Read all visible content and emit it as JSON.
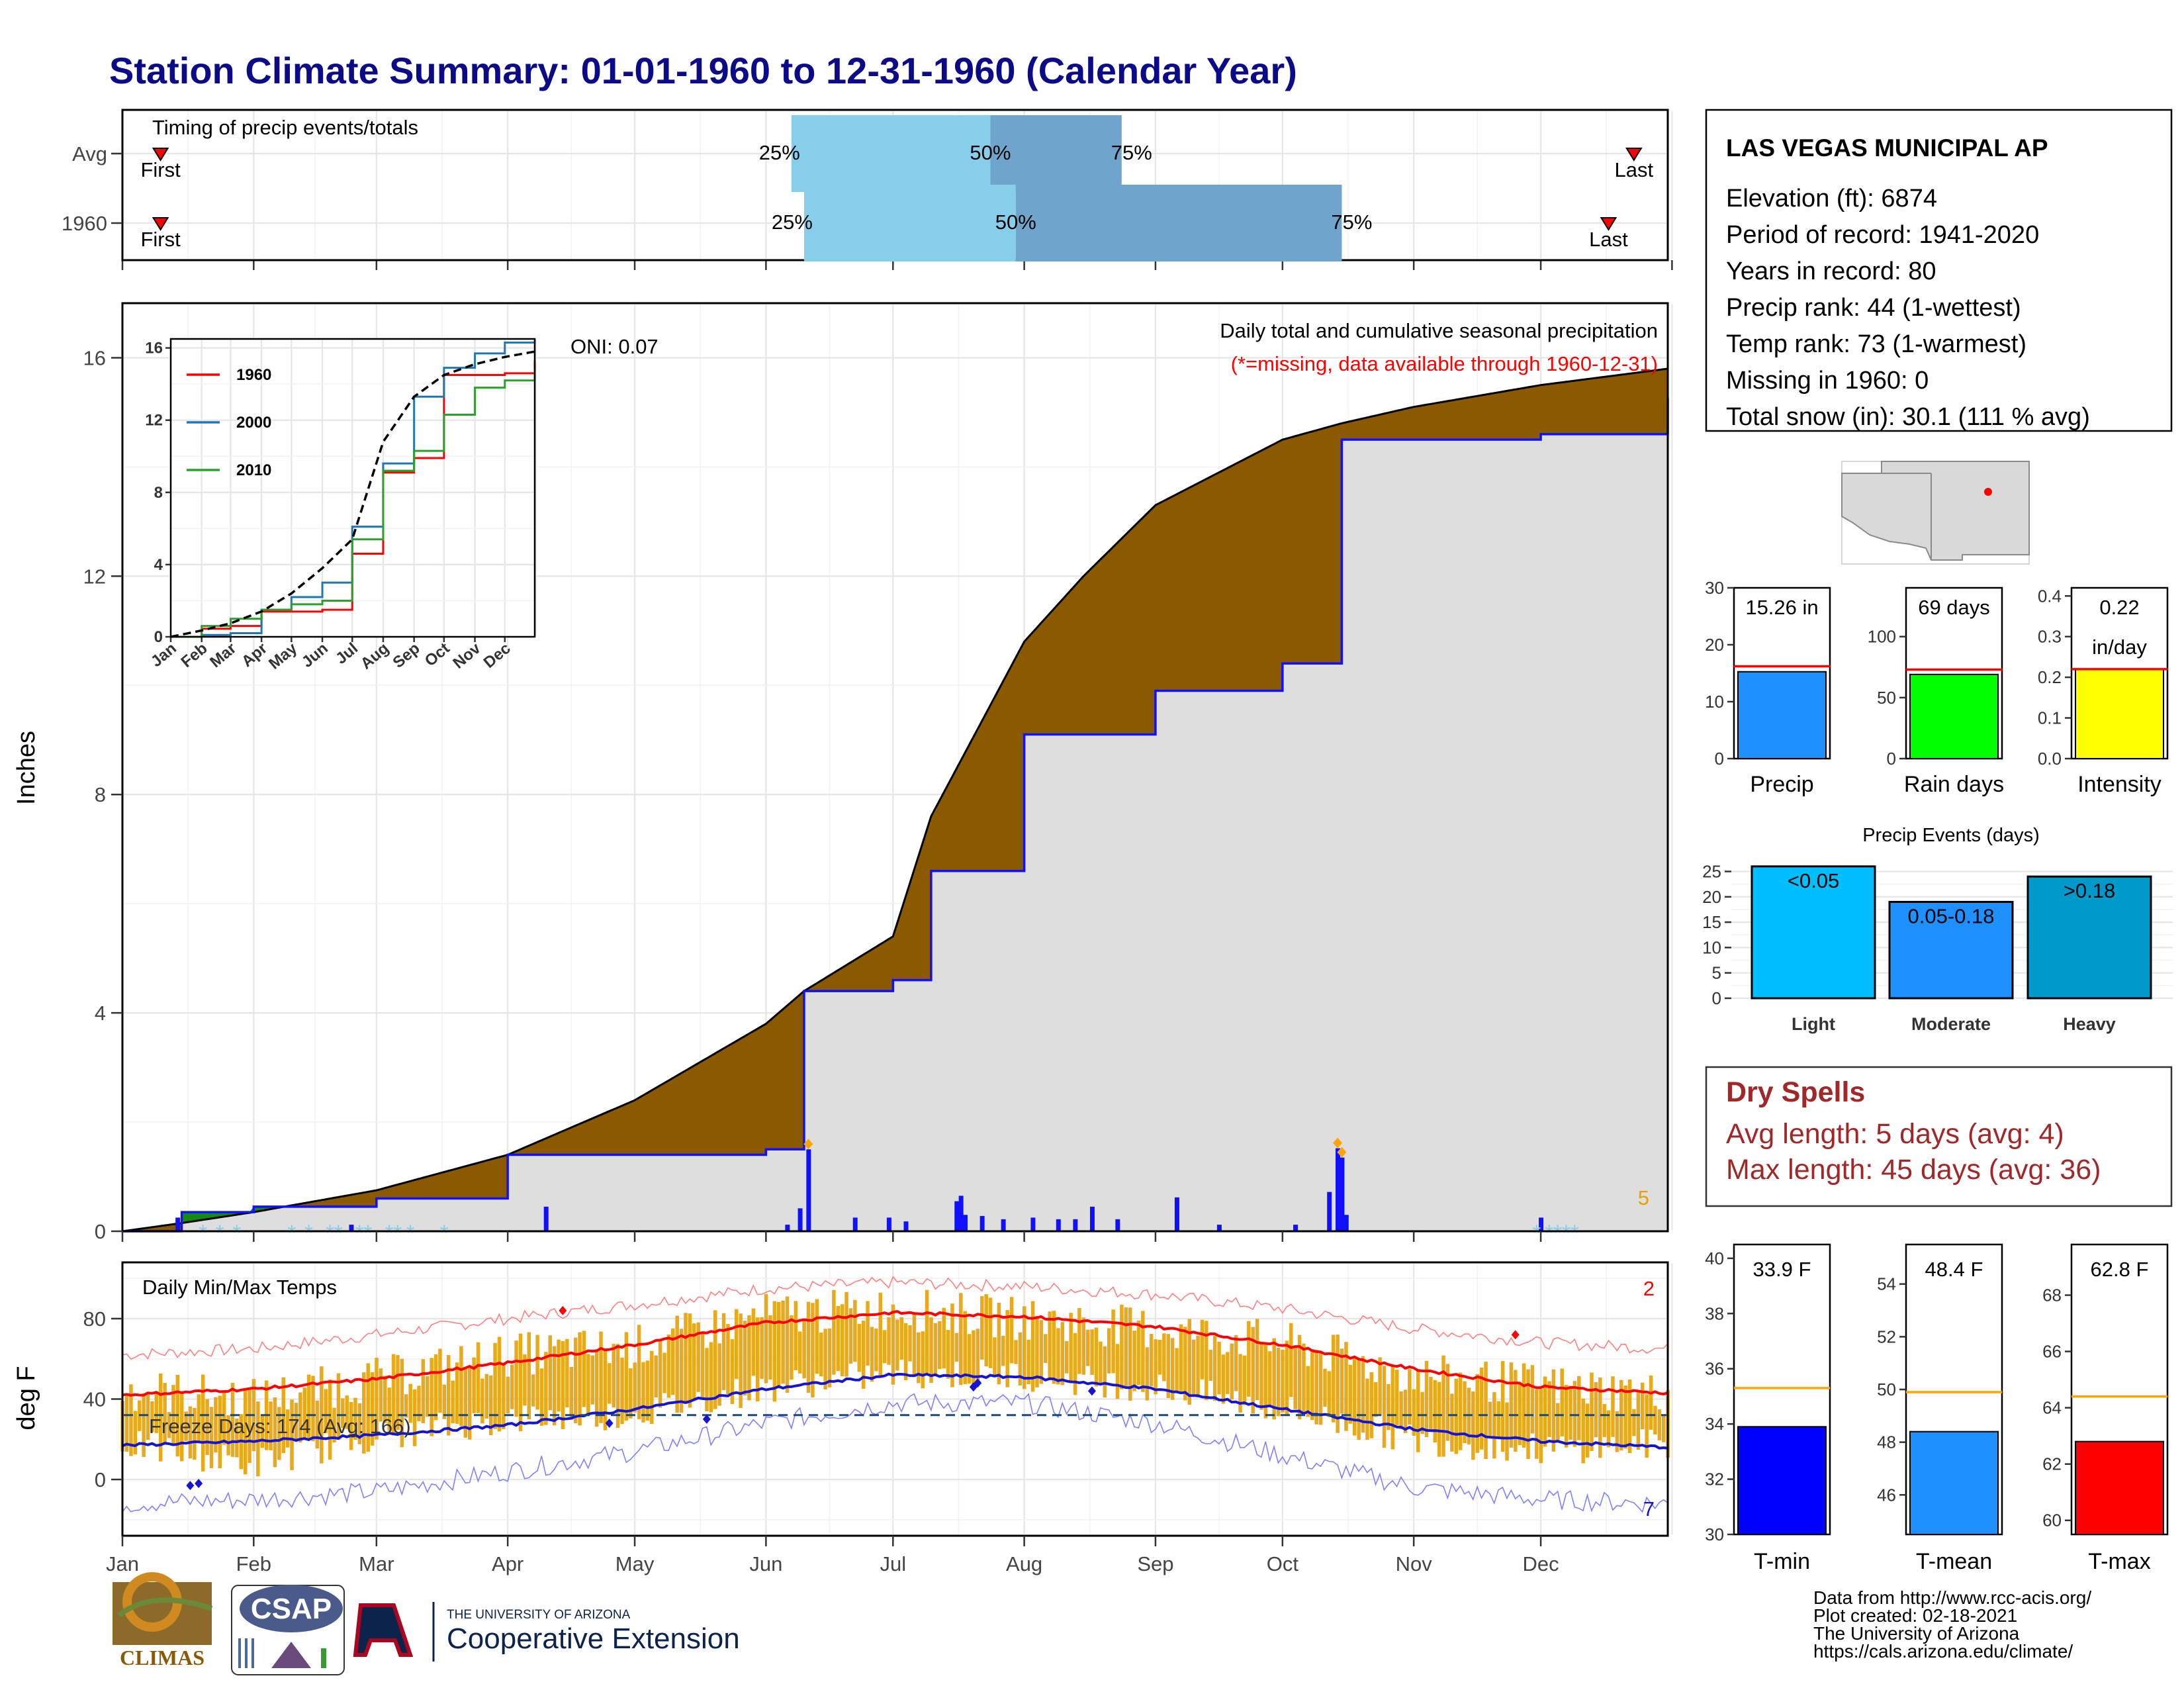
{
  "title": "Station Climate Summary: 01-01-1960 to 12-31-1960 (Calendar Year)",
  "colors": {
    "title": "#0b0b8a",
    "cum_precip": "#8b5a00",
    "deficit": "#138b13",
    "daily_precip": "#1010ff",
    "max_temp": "#ff0000",
    "min_temp": "#1515d0",
    "range_bars": "#e8aa1a",
    "timing_light": "#87ceeb",
    "timing_dark": "#6fa5cc",
    "dry_spells": "#a02828"
  },
  "timing_panel": {
    "title": "Timing of precip events/totals",
    "rows": [
      "Avg",
      "1960"
    ],
    "first_label": "First",
    "last_label": "Last",
    "q25": "25%",
    "q50": "50%",
    "q75": "75%",
    "avg": {
      "first": "01-10",
      "q25": "06-07",
      "q50": "07-24",
      "q75": "08-24",
      "last": "12-23"
    },
    "y1960": {
      "first": "01-10",
      "q25": "06-10",
      "q50": "07-30",
      "q75": "10-15",
      "last": "12-17"
    }
  },
  "precip_panel": {
    "ylabel": "Inches",
    "header": "Daily total and cumulative seasonal precipitation",
    "missing_note": "(*=missing, data available through 1960-12-31)",
    "oni": "ONI: 0.07",
    "corner_count": "5",
    "month_labels": [
      "Jan",
      "Feb",
      "Mar",
      "Apr",
      "May",
      "Jun",
      "Jul",
      "Aug",
      "Sep",
      "Oct",
      "Nov",
      "Dec"
    ],
    "y_ticks": [
      "0",
      "4",
      "8",
      "12",
      "16"
    ]
  },
  "inset": {
    "legend": [
      "1960",
      "2000",
      "2010"
    ],
    "legend_colors": [
      "#ff0000",
      "#1f77b4",
      "#2ca02c"
    ],
    "y_ticks": [
      "0",
      "4",
      "8",
      "12",
      "16"
    ],
    "x_ticks": [
      "Jan",
      "Feb",
      "Mar",
      "Apr",
      "May",
      "Jun",
      "Jul",
      "Aug",
      "Sep",
      "Oct",
      "Nov",
      "Dec"
    ]
  },
  "temp_panel": {
    "ylabel": "deg F",
    "title": "Daily Min/Max Temps",
    "freeze": "Freeze Days: 174 (Avg: 166)",
    "top_count": "2",
    "bottom_count": "7",
    "y_ticks": [
      "0",
      "40",
      "80"
    ]
  },
  "station": {
    "name": "LAS VEGAS MUNICIPAL AP",
    "lines": [
      "Elevation (ft): 6874",
      "Period of record: 1941-2020",
      "Years in record: 80",
      "Precip rank: 44 (1-wettest)",
      "Temp rank: 73 (1-warmest)",
      "Missing in 1960: 0",
      "Total snow (in): 30.1 (111 % avg)"
    ]
  },
  "summary_bars": {
    "precip": {
      "label": "Precip",
      "value_text": "15.26 in",
      "value": 15.26,
      "avg": 16.2,
      "ymax": 30,
      "ticks": [
        "0",
        "10",
        "20",
        "30"
      ]
    },
    "rain_days": {
      "label": "Rain days",
      "value_text": "69 days",
      "value": 69,
      "avg": 73,
      "ymax": 140,
      "ticks": [
        "0",
        "50",
        "100"
      ]
    },
    "intensity": {
      "label": "Intensity",
      "value_text_1": "0.22",
      "value_text_2": "in/day",
      "value": 0.22,
      "avg": 0.22,
      "ymax": 0.42,
      "ticks": [
        "0.0",
        "0.1",
        "0.2",
        "0.3",
        "0.4"
      ]
    }
  },
  "precip_events": {
    "title": "Precip Events (days)",
    "categories": [
      "Light",
      "Moderate",
      "Heavy"
    ],
    "bar_labels": [
      "<0.05",
      "0.05-0.18",
      ">0.18"
    ],
    "values": [
      26,
      19,
      24
    ],
    "ticks": [
      "0",
      "5",
      "10",
      "15",
      "20",
      "25"
    ]
  },
  "dry_spells": {
    "title": "Dry Spells",
    "avg": "Avg length: 5 days (avg: 4)",
    "max": "Max length: 45 days (avg: 36)"
  },
  "temp_summary": {
    "tmin": {
      "label": "T-min",
      "value_text": "33.9 F",
      "value": 33.9,
      "avg": 35.3,
      "ymin": 30,
      "ymax": 40.5,
      "ticks": [
        "30",
        "32",
        "34",
        "36",
        "38",
        "40"
      ]
    },
    "tmean": {
      "label": "T-mean",
      "value_text": "48.4 F",
      "value": 48.4,
      "avg": 49.9,
      "ymin": 44.5,
      "ymax": 55.5,
      "ticks": [
        "46",
        "48",
        "50",
        "52",
        "54"
      ]
    },
    "tmax": {
      "label": "T-max",
      "value_text": "62.8 F",
      "value": 62.8,
      "avg": 64.4,
      "ymin": 59.5,
      "ymax": 69.8,
      "ticks": [
        "60",
        "62",
        "64",
        "66",
        "68"
      ]
    }
  },
  "footer": {
    "lines": [
      "Data from http://www.rcc-acis.org/",
      "Plot created: 02-18-2021",
      "The University of Arizona",
      "https://cals.arizona.edu/climate/"
    ],
    "logo_climas": "CLIMAS",
    "logo_csap": "CSAP",
    "ua_line1": "THE UNIVERSITY OF ARIZONA",
    "ua_line2": "Cooperative Extension"
  },
  "chart_data": [
    {
      "type": "area",
      "name": "cumulative precipitation",
      "xlabel": "",
      "ylabel": "Inches",
      "ylim": [
        0,
        17
      ],
      "x": [
        "01-01",
        "01-15",
        "02-01",
        "03-01",
        "04-01",
        "05-01",
        "06-01",
        "06-10",
        "07-01",
        "07-10",
        "08-01",
        "08-15",
        "09-01",
        "10-01",
        "10-15",
        "11-01",
        "12-01",
        "12-31"
      ],
      "series": [
        {
          "name": "1960",
          "values": [
            0.0,
            0.35,
            0.45,
            0.6,
            1.4,
            1.4,
            1.5,
            4.4,
            4.6,
            6.6,
            9.1,
            9.1,
            9.9,
            10.4,
            14.5,
            14.5,
            14.6,
            15.26
          ]
        },
        {
          "name": "average",
          "values": [
            0.0,
            0.15,
            0.35,
            0.75,
            1.4,
            2.4,
            3.8,
            4.4,
            5.4,
            7.6,
            10.8,
            12.0,
            13.3,
            14.5,
            14.8,
            15.1,
            15.5,
            15.8
          ]
        }
      ]
    },
    {
      "type": "bar",
      "name": "daily precipitation",
      "x": [
        "01-14",
        "02-24",
        "04-10",
        "06-06",
        "06-09",
        "06-11",
        "06-22",
        "06-30",
        "07-04",
        "07-16",
        "07-17",
        "07-18",
        "07-22",
        "07-27",
        "08-03",
        "08-09",
        "08-13",
        "08-17",
        "08-23",
        "09-06",
        "09-16",
        "10-04",
        "10-12",
        "10-14",
        "10-15",
        "10-16",
        "12-01"
      ],
      "values": [
        0.25,
        0.12,
        0.45,
        0.12,
        0.42,
        1.5,
        0.25,
        0.25,
        0.18,
        0.55,
        0.65,
        0.3,
        0.28,
        0.22,
        0.25,
        0.22,
        0.22,
        0.45,
        0.22,
        0.62,
        0.12,
        0.12,
        0.72,
        1.52,
        1.35,
        0.3,
        0.25
      ]
    },
    {
      "type": "line",
      "name": "inset cumulative precipitation",
      "ylim": [
        0,
        16.5
      ],
      "x": [
        "01-01",
        "02-01",
        "03-01",
        "04-01",
        "05-01",
        "06-01",
        "07-01",
        "08-01",
        "09-01",
        "10-01",
        "11-01",
        "12-01",
        "12-31"
      ],
      "series": [
        {
          "name": "1960",
          "values": [
            0.0,
            0.45,
            0.6,
            1.4,
            1.4,
            1.5,
            4.6,
            9.1,
            9.9,
            14.5,
            14.5,
            14.6,
            15.26
          ]
        },
        {
          "name": "2000",
          "values": [
            0.0,
            0.1,
            0.2,
            1.5,
            2.2,
            3.0,
            6.1,
            9.6,
            13.3,
            14.9,
            15.7,
            16.3,
            16.4
          ]
        },
        {
          "name": "2010",
          "values": [
            0.0,
            0.6,
            1.0,
            1.5,
            1.8,
            2.0,
            5.4,
            9.2,
            10.3,
            12.3,
            13.8,
            14.2,
            14.9
          ]
        },
        {
          "name": "average",
          "values": [
            0.0,
            0.35,
            0.75,
            1.4,
            2.4,
            3.8,
            5.4,
            10.8,
            13.3,
            14.5,
            15.1,
            15.5,
            15.8
          ]
        }
      ]
    },
    {
      "type": "line",
      "name": "daily temperatures",
      "ylabel": "deg F",
      "ylim": [
        -28,
        108
      ],
      "x": [
        "01-01",
        "02-01",
        "03-01",
        "04-01",
        "05-01",
        "06-01",
        "07-01",
        "08-01",
        "09-01",
        "10-01",
        "11-01",
        "12-01",
        "12-31"
      ],
      "series": [
        {
          "name": "normal max",
          "values": [
            42,
            45,
            50,
            58,
            67,
            78,
            83,
            81,
            76,
            67,
            55,
            46,
            43
          ]
        },
        {
          "name": "normal min",
          "values": [
            17,
            19,
            22,
            27,
            35,
            45,
            52,
            51,
            45,
            35,
            25,
            19,
            16
          ]
        },
        {
          "name": "record high",
          "values": [
            62,
            65,
            72,
            80,
            87,
            95,
            98,
            96,
            92,
            85,
            75,
            68,
            65
          ]
        },
        {
          "name": "record low",
          "values": [
            -12,
            -10,
            -6,
            4,
            14,
            28,
            38,
            38,
            28,
            12,
            -4,
            -10,
            -12
          ]
        },
        {
          "name": "1960 max",
          "values": [
            45,
            40,
            50,
            62,
            66,
            82,
            85,
            80,
            75,
            68,
            52,
            47,
            42
          ]
        },
        {
          "name": "1960 min",
          "values": [
            18,
            8,
            22,
            30,
            33,
            46,
            53,
            52,
            46,
            35,
            20,
            15,
            18
          ]
        }
      ],
      "freeze_line": 32
    },
    {
      "type": "bar",
      "name": "precip events",
      "categories": [
        "Light",
        "Moderate",
        "Heavy"
      ],
      "values": [
        26,
        19,
        24
      ],
      "ylim": [
        0,
        26
      ]
    },
    {
      "type": "bar",
      "name": "season summary",
      "categories": [
        "Precip",
        "Rain days",
        "Intensity",
        "T-min",
        "T-mean",
        "T-max"
      ],
      "values": [
        15.26,
        69,
        0.22,
        33.9,
        48.4,
        62.8
      ],
      "averages": [
        16.2,
        73,
        0.22,
        35.3,
        49.9,
        64.4
      ]
    }
  ]
}
